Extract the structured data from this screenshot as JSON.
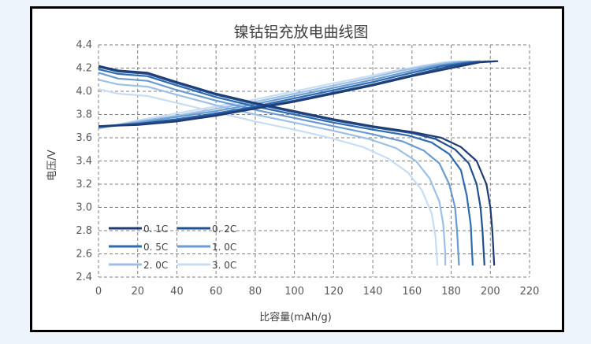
{
  "chart_data": {
    "type": "line",
    "title": "镍钴铝充放电曲线图",
    "xlabel": "比容量(mAh/g)",
    "ylabel": "电压/V",
    "xlim": [
      0,
      220
    ],
    "ylim": [
      2.4,
      4.4
    ],
    "x_ticks": [
      "0",
      "20",
      "40",
      "60",
      "80",
      "100",
      "120",
      "140",
      "160",
      "180",
      "200",
      "220"
    ],
    "y_ticks": [
      "2.4",
      "2.6",
      "2.8",
      "3.0",
      "3.2",
      "3.4",
      "3.6",
      "3.8",
      "4.0",
      "4.2",
      "4.4"
    ],
    "grid": true,
    "legend_position": "bottom-left",
    "series": [
      {
        "name": "0. 1C",
        "color": "#1f3b73",
        "discharge": [
          [
            0,
            4.22
          ],
          [
            10,
            4.18
          ],
          [
            25,
            4.16
          ],
          [
            40,
            4.08
          ],
          [
            60,
            3.98
          ],
          [
            80,
            3.9
          ],
          [
            100,
            3.83
          ],
          [
            120,
            3.76
          ],
          [
            140,
            3.7
          ],
          [
            160,
            3.65
          ],
          [
            175,
            3.6
          ],
          [
            185,
            3.52
          ],
          [
            193,
            3.4
          ],
          [
            198,
            3.2
          ],
          [
            200,
            3.0
          ],
          [
            201,
            2.8
          ],
          [
            202,
            2.5
          ]
        ],
        "charge": [
          [
            0,
            3.7
          ],
          [
            20,
            3.71
          ],
          [
            40,
            3.74
          ],
          [
            60,
            3.79
          ],
          [
            80,
            3.85
          ],
          [
            100,
            3.91
          ],
          [
            120,
            3.98
          ],
          [
            140,
            4.05
          ],
          [
            160,
            4.13
          ],
          [
            180,
            4.2
          ],
          [
            195,
            4.25
          ],
          [
            204,
            4.26
          ]
        ]
      },
      {
        "name": "0. 2C",
        "color": "#22508e",
        "discharge": [
          [
            0,
            4.21
          ],
          [
            10,
            4.17
          ],
          [
            25,
            4.15
          ],
          [
            40,
            4.07
          ],
          [
            60,
            3.97
          ],
          [
            80,
            3.89
          ],
          [
            100,
            3.82
          ],
          [
            120,
            3.75
          ],
          [
            140,
            3.69
          ],
          [
            160,
            3.64
          ],
          [
            172,
            3.59
          ],
          [
            182,
            3.5
          ],
          [
            189,
            3.38
          ],
          [
            193,
            3.2
          ],
          [
            195,
            3.0
          ],
          [
            196,
            2.8
          ],
          [
            197,
            2.5
          ]
        ],
        "charge": [
          [
            0,
            3.7
          ],
          [
            20,
            3.72
          ],
          [
            40,
            3.75
          ],
          [
            60,
            3.8
          ],
          [
            80,
            3.86
          ],
          [
            100,
            3.92
          ],
          [
            120,
            3.99
          ],
          [
            140,
            4.06
          ],
          [
            160,
            4.14
          ],
          [
            178,
            4.21
          ],
          [
            192,
            4.25
          ],
          [
            203,
            4.26
          ]
        ]
      },
      {
        "name": "0. 5C",
        "color": "#2e6bb0",
        "discharge": [
          [
            0,
            4.19
          ],
          [
            10,
            4.15
          ],
          [
            25,
            4.13
          ],
          [
            40,
            4.05
          ],
          [
            60,
            3.95
          ],
          [
            80,
            3.87
          ],
          [
            100,
            3.8
          ],
          [
            120,
            3.73
          ],
          [
            140,
            3.67
          ],
          [
            158,
            3.62
          ],
          [
            170,
            3.56
          ],
          [
            179,
            3.46
          ],
          [
            185,
            3.32
          ],
          [
            188,
            3.1
          ],
          [
            190,
            2.85
          ],
          [
            191,
            2.5
          ]
        ],
        "charge": [
          [
            0,
            3.69
          ],
          [
            20,
            3.72
          ],
          [
            40,
            3.76
          ],
          [
            60,
            3.81
          ],
          [
            80,
            3.87
          ],
          [
            100,
            3.94
          ],
          [
            120,
            4.01
          ],
          [
            140,
            4.08
          ],
          [
            160,
            4.16
          ],
          [
            176,
            4.22
          ],
          [
            190,
            4.25
          ],
          [
            200,
            4.26
          ]
        ]
      },
      {
        "name": "1. 0C",
        "color": "#6b9bd1",
        "discharge": [
          [
            0,
            4.16
          ],
          [
            10,
            4.11
          ],
          [
            25,
            4.09
          ],
          [
            40,
            4.01
          ],
          [
            60,
            3.92
          ],
          [
            80,
            3.84
          ],
          [
            100,
            3.77
          ],
          [
            120,
            3.7
          ],
          [
            140,
            3.63
          ],
          [
            155,
            3.57
          ],
          [
            166,
            3.49
          ],
          [
            174,
            3.38
          ],
          [
            179,
            3.2
          ],
          [
            182,
            3.0
          ],
          [
            183,
            2.8
          ],
          [
            184,
            2.5
          ]
        ],
        "charge": [
          [
            0,
            3.69
          ],
          [
            20,
            3.73
          ],
          [
            40,
            3.78
          ],
          [
            60,
            3.83
          ],
          [
            80,
            3.89
          ],
          [
            100,
            3.96
          ],
          [
            120,
            4.03
          ],
          [
            140,
            4.1
          ],
          [
            158,
            4.17
          ],
          [
            172,
            4.22
          ],
          [
            185,
            4.25
          ],
          [
            195,
            4.26
          ]
        ]
      },
      {
        "name": "2. 0C",
        "color": "#9cc0e6",
        "discharge": [
          [
            0,
            4.1
          ],
          [
            10,
            4.06
          ],
          [
            25,
            4.04
          ],
          [
            40,
            3.97
          ],
          [
            60,
            3.88
          ],
          [
            80,
            3.8
          ],
          [
            100,
            3.73
          ],
          [
            120,
            3.66
          ],
          [
            138,
            3.59
          ],
          [
            152,
            3.51
          ],
          [
            162,
            3.4
          ],
          [
            169,
            3.25
          ],
          [
            174,
            3.05
          ],
          [
            176,
            2.85
          ],
          [
            177,
            2.6
          ],
          [
            177,
            2.5
          ]
        ],
        "charge": [
          [
            0,
            3.68
          ],
          [
            20,
            3.74
          ],
          [
            40,
            3.79
          ],
          [
            60,
            3.85
          ],
          [
            80,
            3.91
          ],
          [
            100,
            3.98
          ],
          [
            120,
            4.05
          ],
          [
            140,
            4.12
          ],
          [
            155,
            4.18
          ],
          [
            168,
            4.22
          ],
          [
            180,
            4.25
          ],
          [
            190,
            4.26
          ]
        ]
      },
      {
        "name": "3. 0C",
        "color": "#c9ddf2",
        "discharge": [
          [
            0,
            4.02
          ],
          [
            10,
            3.98
          ],
          [
            25,
            3.96
          ],
          [
            40,
            3.9
          ],
          [
            60,
            3.82
          ],
          [
            80,
            3.74
          ],
          [
            100,
            3.67
          ],
          [
            118,
            3.6
          ],
          [
            135,
            3.52
          ],
          [
            148,
            3.42
          ],
          [
            158,
            3.3
          ],
          [
            165,
            3.15
          ],
          [
            170,
            2.95
          ],
          [
            172,
            2.75
          ],
          [
            173,
            2.5
          ]
        ],
        "charge": [
          [
            0,
            3.68
          ],
          [
            20,
            3.75
          ],
          [
            40,
            3.81
          ],
          [
            60,
            3.87
          ],
          [
            80,
            3.93
          ],
          [
            100,
            4.0
          ],
          [
            120,
            4.07
          ],
          [
            138,
            4.13
          ],
          [
            152,
            4.18
          ],
          [
            165,
            4.22
          ],
          [
            176,
            4.25
          ],
          [
            185,
            4.26
          ]
        ]
      }
    ]
  }
}
